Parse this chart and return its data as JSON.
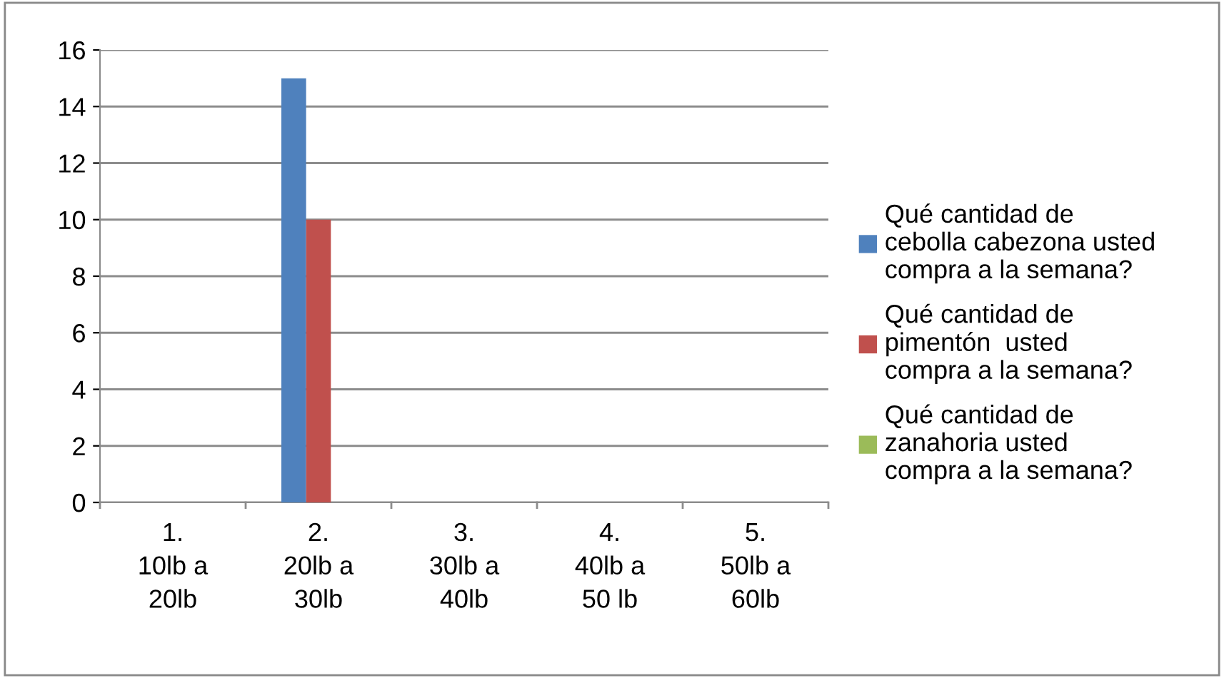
{
  "chart_data": {
    "type": "bar",
    "categories": [
      "1.\n10lb a\n20lb",
      "2.\n20lb a\n30lb",
      "3.\n30lb a\n40lb",
      "4.\n40lb a\n50 lb",
      "5.\n50lb a\n60lb"
    ],
    "series": [
      {
        "name": "Qué cantidad de\ncebolla cabezona usted\ncompra a la semana?",
        "color": "#4f81bd",
        "values": [
          0,
          15,
          0,
          0,
          0
        ]
      },
      {
        "name": "Qué cantidad de\npimentón  usted\ncompra a la semana?",
        "color": "#c0504d",
        "values": [
          0,
          10,
          0,
          0,
          0
        ]
      },
      {
        "name": "Qué cantidad de\nzanahoria usted\ncompra a la semana?",
        "color": "#9bbb59",
        "values": [
          0,
          0,
          0,
          0,
          0
        ]
      }
    ],
    "ylim": [
      0,
      16
    ],
    "yticks": [
      0,
      2,
      4,
      6,
      8,
      10,
      12,
      14,
      16
    ],
    "grid": "y",
    "legend": "right"
  }
}
